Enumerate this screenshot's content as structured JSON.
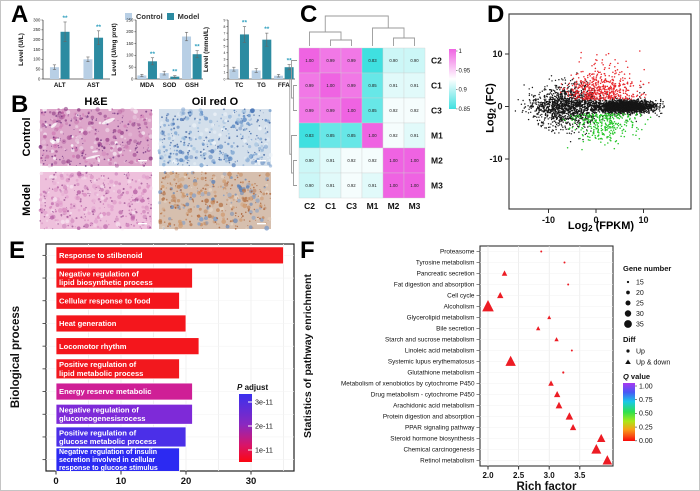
{
  "panels": {
    "a": {
      "label": "A",
      "legend": {
        "control": "Control",
        "model": "Model"
      },
      "colors": {
        "control": "#b8cfe5",
        "model": "#2c8ba1",
        "sig": "#2e9fbe",
        "error": "#666666"
      }
    },
    "b": {
      "label": "B",
      "col_headers": [
        "H&E",
        "Oil red O"
      ],
      "row_labels": [
        "Control",
        "Model"
      ],
      "images": [
        {
          "name": "he-control",
          "base": "#dda6ca",
          "dots": [
            "#b9609f",
            "#a14a92",
            "#d27fb6",
            "#8f3d85",
            "#eccfe2",
            "#ffffff"
          ],
          "nuclei": "#6e2f7e",
          "streaks": true
        },
        {
          "name": "oilred-control",
          "base": "#d3dfeb",
          "dots": [
            "#7ea6d2",
            "#5c8ac4",
            "#9cbede",
            "#4673b5",
            "#eef4f9"
          ],
          "nuclei": "#3a5f9e"
        },
        {
          "name": "he-model",
          "base": "#eec0dc",
          "dots": [
            "#d88cc1",
            "#c773b2",
            "#e2a3cf",
            "#b862a6",
            "#f6e0ee"
          ],
          "nuclei": "#9b4f91"
        },
        {
          "name": "oilred-model",
          "base": "#d6bfae",
          "dots": [
            "#c28457",
            "#b36f41",
            "#d09a6e",
            "#7d9cc8",
            "#5d82b8",
            "#e7d6c6"
          ],
          "nuclei": "#a85f34"
        }
      ]
    },
    "c": {
      "label": "C"
    },
    "d": {
      "label": "D",
      "xlabel": {
        "main": "Log",
        "sub": "2",
        "rest": " (FPKM)"
      },
      "ylabel": {
        "main": "Log",
        "sub": "2",
        "rest": " (FC)"
      }
    },
    "e": {
      "label": "E",
      "axis_label": "Biological process",
      "legend": {
        "title_italic": "P",
        "title_rest": " adjust",
        "ticks": [
          "3e-11",
          "2e-11",
          "1e-11"
        ],
        "top_color": "#3b30ee",
        "bottom_color": "#fb0712"
      }
    },
    "f": {
      "label": "F",
      "axis_label_y": "Statistics of pathway enrichment",
      "axis_label_x": "Rich factor",
      "legends": {
        "gene_number": {
          "title": "Gene number",
          "sizes": [
            15,
            20,
            25,
            30,
            35
          ]
        },
        "diff": {
          "title": "Diff",
          "up": "Up",
          "updown": "Up & down"
        },
        "q": {
          "title_italic": "Q",
          "title_rest": " value",
          "ticks": [
            "1.00",
            "0.75",
            "0.50",
            "0.25",
            "0.00"
          ]
        }
      }
    }
  },
  "chart_data": [
    {
      "id": "a1",
      "type": "bar",
      "ylabel": "Level (U/L)",
      "ylim": [
        0,
        300
      ],
      "yticks": [
        0,
        50,
        100,
        150,
        200,
        250,
        300
      ],
      "categories": [
        "ALT",
        "AST"
      ],
      "series": [
        {
          "name": "Control",
          "values": [
            60,
            100
          ],
          "errors": [
            12,
            12
          ]
        },
        {
          "name": "Model",
          "values": [
            240,
            210
          ],
          "errors": [
            50,
            35
          ]
        }
      ],
      "sig": [
        "**",
        "**"
      ]
    },
    {
      "id": "a2",
      "type": "bar",
      "ylabel": "Level (U/mg prot)",
      "ylim": [
        0,
        250
      ],
      "yticks": [
        0,
        50,
        100,
        150,
        200,
        250
      ],
      "categories": [
        "MDA",
        "SOD",
        "GSH"
      ],
      "series": [
        {
          "name": "Control",
          "values": [
            15,
            25,
            180
          ],
          "errors": [
            5,
            8,
            18
          ]
        },
        {
          "name": "Model",
          "values": [
            75,
            10,
            105
          ],
          "errors": [
            15,
            4,
            15
          ]
        }
      ],
      "sig": [
        "**",
        "**",
        "**"
      ]
    },
    {
      "id": "a3",
      "type": "bar",
      "ylabel": "Level (mmol/L)",
      "ylim": [
        0,
        9
      ],
      "yticks": [
        0,
        1,
        2,
        3,
        4,
        5,
        6,
        7,
        8,
        9
      ],
      "categories": [
        "TC",
        "TG",
        "FFA"
      ],
      "series": [
        {
          "name": "Control",
          "values": [
            1.5,
            1.3,
            0.5
          ],
          "errors": [
            0.3,
            0.3,
            0.2
          ]
        },
        {
          "name": "Model",
          "values": [
            6.8,
            6.0,
            1.8
          ],
          "errors": [
            1.2,
            1.0,
            0.4
          ]
        }
      ],
      "sig": [
        "**",
        "**",
        "**"
      ]
    },
    {
      "id": "c",
      "type": "heatmap",
      "labels": [
        "C2",
        "C1",
        "C3",
        "M1",
        "M2",
        "M3"
      ],
      "matrix": [
        [
          1.0,
          0.99,
          0.99,
          0.83,
          0.9,
          0.9
        ],
        [
          0.99,
          1.0,
          0.99,
          0.85,
          0.91,
          0.91
        ],
        [
          0.99,
          0.99,
          1.0,
          0.85,
          0.92,
          0.92
        ],
        [
          0.83,
          0.85,
          0.85,
          1.0,
          0.92,
          0.91
        ],
        [
          0.9,
          0.91,
          0.92,
          0.92,
          1.0,
          1.0
        ],
        [
          0.9,
          0.91,
          0.92,
          0.91,
          1.0,
          1.0
        ]
      ],
      "colorbar_ticks": [
        "1",
        "0.95",
        "0.9",
        "0.85"
      ],
      "color_high": "#ef63e2",
      "color_mid": "#ffffff",
      "color_low": "#3fe0e0",
      "white_point": 0.925
    },
    {
      "id": "d",
      "type": "scatter",
      "xlabel": "Log2 (FPKM)",
      "ylabel": "Log2 (FC)",
      "xlim": [
        -18.3,
        20
      ],
      "ylim": [
        -19.5,
        17.6
      ],
      "xticks": [
        -10,
        0,
        10
      ],
      "yticks": [
        10,
        0,
        -10
      ],
      "clusters": [
        {
          "name": "unchanged",
          "color": "#161616",
          "n": 3600,
          "components": [
            {
              "frac": 0.58,
              "x_mean": 6,
              "x_sd": 3,
              "x_min": -3,
              "x_max": 14.5,
              "y_sd": 0.55
            },
            {
              "frac": 0.32,
              "x_mean": -6,
              "x_sd": 3.5,
              "x_min": -17,
              "x_max": 0,
              "y_sd": 2.1
            },
            {
              "frac": 0.1,
              "x_mean": -2,
              "x_sd": 8,
              "x_min": -17,
              "x_max": 14,
              "y_sd": 1.1
            }
          ]
        },
        {
          "name": "up",
          "color": "#e8272c",
          "n": 520,
          "x_mean": 1,
          "x_sd": 3.8,
          "x_min": -8,
          "x_max": 13,
          "y_base": 1.3,
          "y_sd": 3.0,
          "y_cap": 15.5
        },
        {
          "name": "down",
          "color": "#23c527",
          "n": 310,
          "x_mean": 2,
          "x_sd": 3.4,
          "x_min": -7,
          "x_max": 13.5,
          "y_base": -1.3,
          "y_sd": 2.8,
          "y_cap": -17.5
        }
      ]
    },
    {
      "id": "e",
      "type": "bar",
      "orientation": "horizontal",
      "xticks": [
        0,
        10,
        20,
        30
      ],
      "xlim": [
        0,
        36.6
      ],
      "bars": [
        {
          "lines": [
            "Response to stilbenoid"
          ],
          "value": 35,
          "color": "#f4161c"
        },
        {
          "lines": [
            "Negative regulation of",
            "lipid biosynthetic process"
          ],
          "value": 21,
          "color": "#f4161c"
        },
        {
          "lines": [
            "Cellular response to food"
          ],
          "value": 19,
          "color": "#f4161c"
        },
        {
          "lines": [
            "Heat generation"
          ],
          "value": 20,
          "color": "#f4161c"
        },
        {
          "lines": [
            "Locomotor rhythm"
          ],
          "value": 22,
          "color": "#f4161c"
        },
        {
          "lines": [
            "Positive regulation of",
            "lipid metabolic process"
          ],
          "value": 19,
          "color": "#f2181e"
        },
        {
          "lines": [
            "Energy reserve metabolic"
          ],
          "value": 21,
          "color": "#cf1f96"
        },
        {
          "lines": [
            "Negative regulation of",
            "gluconeogenesisrocess"
          ],
          "value": 21,
          "color": "#7e2ad8"
        },
        {
          "lines": [
            "Positive regulation of",
            "glucose metabolic process"
          ],
          "value": 20,
          "color": "#4b2fe8"
        },
        {
          "lines": [
            "Negative regulation of insulin",
            "secretion involved in cellular",
            "response to glucose stimulus"
          ],
          "value": 19,
          "color": "#2c2af2"
        }
      ]
    },
    {
      "id": "f",
      "type": "scatter",
      "xticks": [
        "2.0",
        "2.5",
        "3.0",
        "3.5"
      ],
      "xtick_values": [
        2.0,
        2.5,
        3.0,
        3.5
      ],
      "xlim": [
        1.87,
        4.04
      ],
      "dot_color": "#ed1c24",
      "points": [
        {
          "label": "Proteasome",
          "rich_factor": 2.87,
          "gene_number": 15,
          "diff": "Up"
        },
        {
          "label": "Tyrosine metabolism",
          "rich_factor": 3.25,
          "gene_number": 15,
          "diff": "Up"
        },
        {
          "label": "Pancreatic secretion",
          "rich_factor": 2.27,
          "gene_number": 20,
          "diff": "Up & down"
        },
        {
          "label": "Fat digestion and absorption",
          "rich_factor": 3.31,
          "gene_number": 15,
          "diff": "Up"
        },
        {
          "label": "Cell cycle",
          "rich_factor": 2.2,
          "gene_number": 22,
          "diff": "Up & down"
        },
        {
          "label": "Alcoholism",
          "rich_factor": 2.0,
          "gene_number": 35,
          "diff": "Up & down"
        },
        {
          "label": "Glycerolipid metabolism",
          "rich_factor": 3.0,
          "gene_number": 16,
          "diff": "Up & down"
        },
        {
          "label": "Bile secretion",
          "rich_factor": 2.82,
          "gene_number": 17,
          "diff": "Up & down"
        },
        {
          "label": "Starch and sucrose metabolism",
          "rich_factor": 3.12,
          "gene_number": 17,
          "diff": "Up & down"
        },
        {
          "label": "Linoleic acid metabolism",
          "rich_factor": 3.37,
          "gene_number": 15,
          "diff": "Up"
        },
        {
          "label": "Systemic lupus erythematosus",
          "rich_factor": 2.37,
          "gene_number": 32,
          "diff": "Up & down"
        },
        {
          "label": "Glutathione metabolism",
          "rich_factor": 3.23,
          "gene_number": 16,
          "diff": "Up"
        },
        {
          "label": "Metabolism of xenobiotics by cytochrome P450",
          "rich_factor": 3.03,
          "gene_number": 20,
          "diff": "Up & down"
        },
        {
          "label": "Drug metabolism - cytochrome P450",
          "rich_factor": 3.13,
          "gene_number": 22,
          "diff": "Up & down"
        },
        {
          "label": "Arachidonic acid metabolism",
          "rich_factor": 3.16,
          "gene_number": 23,
          "diff": "Up & down"
        },
        {
          "label": "Protein digestion and absorption",
          "rich_factor": 3.33,
          "gene_number": 25,
          "diff": "Up & down"
        },
        {
          "label": "PPAR signaling pathway",
          "rich_factor": 3.39,
          "gene_number": 22,
          "diff": "Up & down"
        },
        {
          "label": "Steroid hormone biosynthesis",
          "rich_factor": 3.85,
          "gene_number": 27,
          "diff": "Up & down"
        },
        {
          "label": "Chemical carcinogenesis",
          "rich_factor": 3.77,
          "gene_number": 31,
          "diff": "Up & down"
        },
        {
          "label": "Retinol metabolism",
          "rich_factor": 3.95,
          "gene_number": 30,
          "diff": "Up & down"
        }
      ]
    }
  ]
}
